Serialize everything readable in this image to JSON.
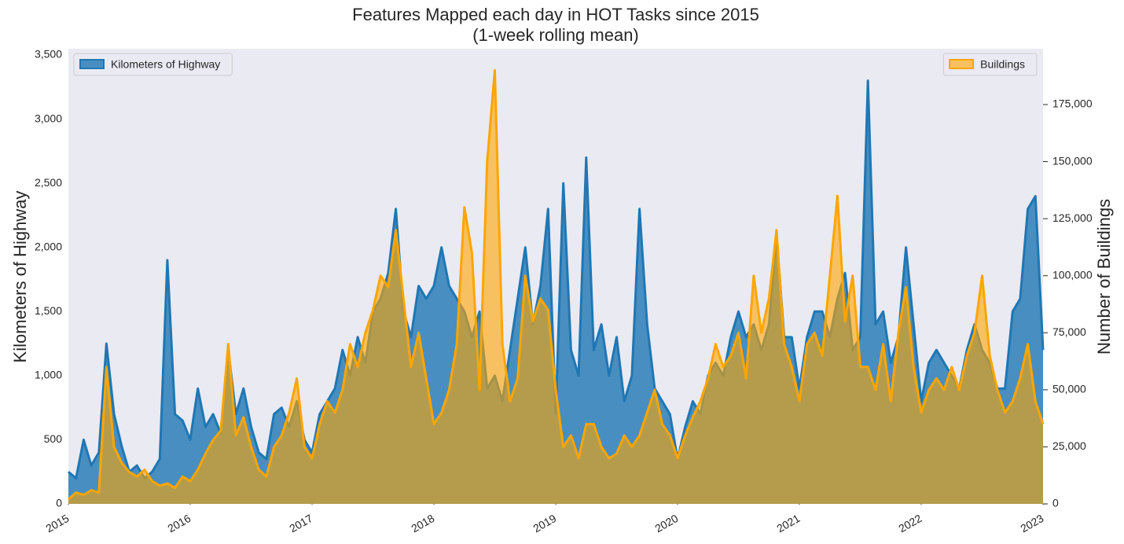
{
  "chart_data": {
    "type": "area",
    "title": "Features Mapped each day in HOT Tasks since 2015",
    "subtitle": "(1-week rolling mean)",
    "ylabel": "Kilometers of Highway",
    "y2label": "Number of Buildings",
    "x": [
      2015,
      2015.0625,
      2015.125,
      2015.1875,
      2015.25,
      2015.3125,
      2015.375,
      2015.4375,
      2015.5,
      2015.5625,
      2015.625,
      2015.6875,
      2015.75,
      2015.8125,
      2015.875,
      2015.9375,
      2016,
      2016.0625,
      2016.125,
      2016.1875,
      2016.25,
      2016.3125,
      2016.375,
      2016.4375,
      2016.5,
      2016.5625,
      2016.625,
      2016.6875,
      2016.75,
      2016.8125,
      2016.875,
      2016.9375,
      2017,
      2017.0625,
      2017.125,
      2017.1875,
      2017.25,
      2017.3125,
      2017.375,
      2017.4375,
      2017.5,
      2017.5625,
      2017.625,
      2017.6875,
      2017.75,
      2017.8125,
      2017.875,
      2017.9375,
      2018,
      2018.0625,
      2018.125,
      2018.1875,
      2018.25,
      2018.3125,
      2018.375,
      2018.4375,
      2018.5,
      2018.5625,
      2018.625,
      2018.6875,
      2018.75,
      2018.8125,
      2018.875,
      2018.9375,
      2019,
      2019.0625,
      2019.125,
      2019.1875,
      2019.25,
      2019.3125,
      2019.375,
      2019.4375,
      2019.5,
      2019.5625,
      2019.625,
      2019.6875,
      2019.75,
      2019.8125,
      2019.875,
      2019.9375,
      2020,
      2020.0625,
      2020.125,
      2020.1875,
      2020.25,
      2020.3125,
      2020.375,
      2020.4375,
      2020.5,
      2020.5625,
      2020.625,
      2020.6875,
      2020.75,
      2020.8125,
      2020.875,
      2020.9375,
      2021,
      2021.0625,
      2021.125,
      2021.1875,
      2021.25,
      2021.3125,
      2021.375,
      2021.4375,
      2021.5,
      2021.5625,
      2021.625,
      2021.6875,
      2021.75,
      2021.8125,
      2021.875,
      2021.9375,
      2022,
      2022.0625,
      2022.125,
      2022.1875,
      2022.25,
      2022.3125,
      2022.375,
      2022.4375,
      2022.5,
      2022.5625,
      2022.625,
      2022.6875,
      2022.75,
      2022.8125,
      2022.875,
      2022.9375,
      2023
    ],
    "series": [
      {
        "name": "Kilometers of Highway",
        "color": "#1f77b4",
        "axis": "y",
        "legend_loc": "upper left",
        "values": [
          250,
          200,
          500,
          300,
          400,
          1250,
          700,
          450,
          250,
          300,
          200,
          250,
          350,
          1900,
          700,
          650,
          500,
          900,
          600,
          700,
          550,
          1200,
          700,
          900,
          600,
          400,
          350,
          700,
          750,
          600,
          800,
          500,
          400,
          700,
          800,
          900,
          1200,
          1000,
          1300,
          1100,
          1500,
          1600,
          1800,
          2300,
          1500,
          1300,
          1700,
          1600,
          1700,
          2000,
          1700,
          1600,
          1500,
          1300,
          1500,
          900,
          1000,
          800,
          1200,
          1600,
          2000,
          1400,
          1700,
          2300,
          700,
          2500,
          1200,
          1000,
          2700,
          1200,
          1400,
          1000,
          1300,
          800,
          1000,
          2300,
          1400,
          900,
          800,
          700,
          350,
          600,
          800,
          700,
          1000,
          1100,
          1000,
          1300,
          1500,
          1300,
          1400,
          1200,
          1400,
          2100,
          1300,
          1300,
          900,
          1300,
          1500,
          1500,
          1300,
          1600,
          1800,
          1200,
          1300,
          3300,
          1400,
          1500,
          1100,
          1300,
          2000,
          1400,
          800,
          1100,
          1200,
          1100,
          1000,
          900,
          1200,
          1400,
          1200,
          1100,
          900,
          900,
          1500,
          1600,
          2300,
          2400,
          1200
        ]
      },
      {
        "name": "Buildings",
        "color": "#ffa500",
        "axis": "y2",
        "legend_loc": "upper right",
        "values": [
          2000,
          5000,
          4000,
          6000,
          5000,
          60000,
          25000,
          18000,
          14000,
          12000,
          15000,
          10000,
          8000,
          9000,
          7000,
          12000,
          10000,
          15000,
          22000,
          28000,
          32000,
          70000,
          30000,
          38000,
          25000,
          15000,
          12000,
          25000,
          30000,
          40000,
          55000,
          25000,
          20000,
          35000,
          45000,
          40000,
          50000,
          70000,
          60000,
          75000,
          85000,
          100000,
          95000,
          120000,
          90000,
          60000,
          75000,
          55000,
          35000,
          40000,
          50000,
          70000,
          130000,
          110000,
          50000,
          150000,
          190000,
          70000,
          45000,
          55000,
          100000,
          80000,
          90000,
          85000,
          50000,
          25000,
          30000,
          20000,
          35000,
          35000,
          25000,
          20000,
          22000,
          30000,
          25000,
          30000,
          40000,
          50000,
          35000,
          30000,
          20000,
          30000,
          38000,
          45000,
          55000,
          70000,
          60000,
          65000,
          75000,
          55000,
          100000,
          75000,
          90000,
          120000,
          70000,
          60000,
          45000,
          70000,
          75000,
          65000,
          100000,
          135000,
          80000,
          100000,
          60000,
          60000,
          50000,
          70000,
          45000,
          75000,
          95000,
          60000,
          40000,
          50000,
          55000,
          50000,
          60000,
          50000,
          65000,
          75000,
          100000,
          65000,
          50000,
          40000,
          45000,
          55000,
          70000,
          45000,
          35000
        ]
      }
    ],
    "xlim": [
      2015,
      2023
    ],
    "xticks": [
      2015,
      2016,
      2017,
      2018,
      2019,
      2020,
      2021,
      2022,
      2023
    ],
    "ylim": [
      0,
      3549
    ],
    "yticks": [
      0,
      500,
      {
        "value": 1000,
        "label": "1,000"
      },
      {
        "value": 1500,
        "label": "1,500"
      },
      {
        "value": 2000,
        "label": "2,000"
      },
      {
        "value": 2500,
        "label": "2,500"
      },
      {
        "value": 3000,
        "label": "3,000"
      },
      {
        "value": 3500,
        "label": "3,500"
      }
    ],
    "y2lim": [
      0,
      199460
    ],
    "y2ticks": [
      0,
      {
        "value": 25000,
        "label": "25,000"
      },
      {
        "value": 50000,
        "label": "50,000"
      },
      {
        "value": 75000,
        "label": "75,000"
      },
      {
        "value": 100000,
        "label": "100,000"
      },
      {
        "value": 125000,
        "label": "125,000"
      },
      {
        "value": 150000,
        "label": "150,000"
      },
      {
        "value": 175000,
        "label": "175,000"
      }
    ],
    "grid": false,
    "background": "#eaeaf2"
  }
}
